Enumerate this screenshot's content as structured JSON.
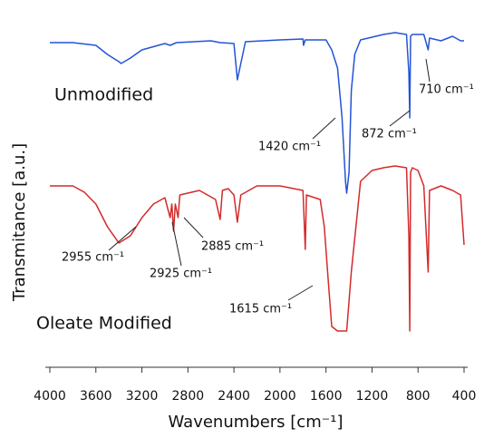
{
  "chart_data": {
    "type": "line",
    "xlabel": "Wavenumbers [cm⁻¹]",
    "ylabel": "Transmitance [a.u.]",
    "xlim": [
      4000,
      400
    ],
    "xticks": [
      4000,
      3600,
      3200,
      2800,
      2400,
      2000,
      1600,
      1200,
      800,
      400
    ],
    "ylim": [
      0,
      350
    ],
    "grid": false,
    "series": [
      {
        "name": "Unmodified",
        "color": "#2454d6",
        "x": [
          4000,
          3800,
          3600,
          3500,
          3400,
          3380,
          3300,
          3200,
          3000,
          2955,
          2900,
          2600,
          2520,
          2400,
          2370,
          2340,
          2300,
          2000,
          1800,
          1795,
          1780,
          1600,
          1550,
          1500,
          1460,
          1430,
          1420,
          1400,
          1380,
          1350,
          1300,
          1100,
          1000,
          900,
          880,
          872,
          865,
          850,
          750,
          712,
          700,
          600,
          500,
          430,
          400
        ],
        "values": [
          333,
          333,
          330,
          320,
          312,
          310,
          316,
          325,
          332,
          330,
          333,
          335,
          333,
          332,
          292,
          310,
          334,
          336,
          337,
          330,
          336,
          336,
          325,
          305,
          250,
          180,
          167,
          190,
          280,
          320,
          336,
          342,
          344,
          342,
          300,
          250,
          340,
          342,
          342,
          325,
          338,
          335,
          340,
          335,
          335
        ]
      },
      {
        "name": "Oleate Modified",
        "color": "#d42a2a",
        "x": [
          4000,
          3800,
          3700,
          3600,
          3500,
          3400,
          3300,
          3200,
          3100,
          3000,
          2955,
          2940,
          2925,
          2910,
          2885,
          2870,
          2700,
          2560,
          2520,
          2500,
          2450,
          2400,
          2370,
          2340,
          2200,
          2000,
          1800,
          1780,
          1770,
          1650,
          1615,
          1580,
          1550,
          1500,
          1420,
          1380,
          1300,
          1200,
          1100,
          1000,
          900,
          880,
          872,
          865,
          850,
          800,
          750,
          712,
          700,
          600,
          500,
          430,
          400
        ],
        "values": [
          175,
          175,
          168,
          155,
          130,
          112,
          120,
          140,
          155,
          162,
          140,
          155,
          125,
          155,
          140,
          165,
          170,
          160,
          138,
          170,
          172,
          165,
          135,
          165,
          175,
          175,
          170,
          105,
          165,
          160,
          130,
          70,
          20,
          15,
          15,
          80,
          180,
          192,
          195,
          197,
          195,
          120,
          15,
          190,
          195,
          192,
          175,
          80,
          170,
          175,
          170,
          165,
          110
        ]
      }
    ],
    "annotations": [
      "710 cm⁻¹",
      "872 cm⁻¹",
      "1420 cm⁻¹",
      "2955 cm⁻¹",
      "2925 cm⁻¹",
      "2885 cm⁻¹",
      "1615 cm⁻¹"
    ]
  }
}
